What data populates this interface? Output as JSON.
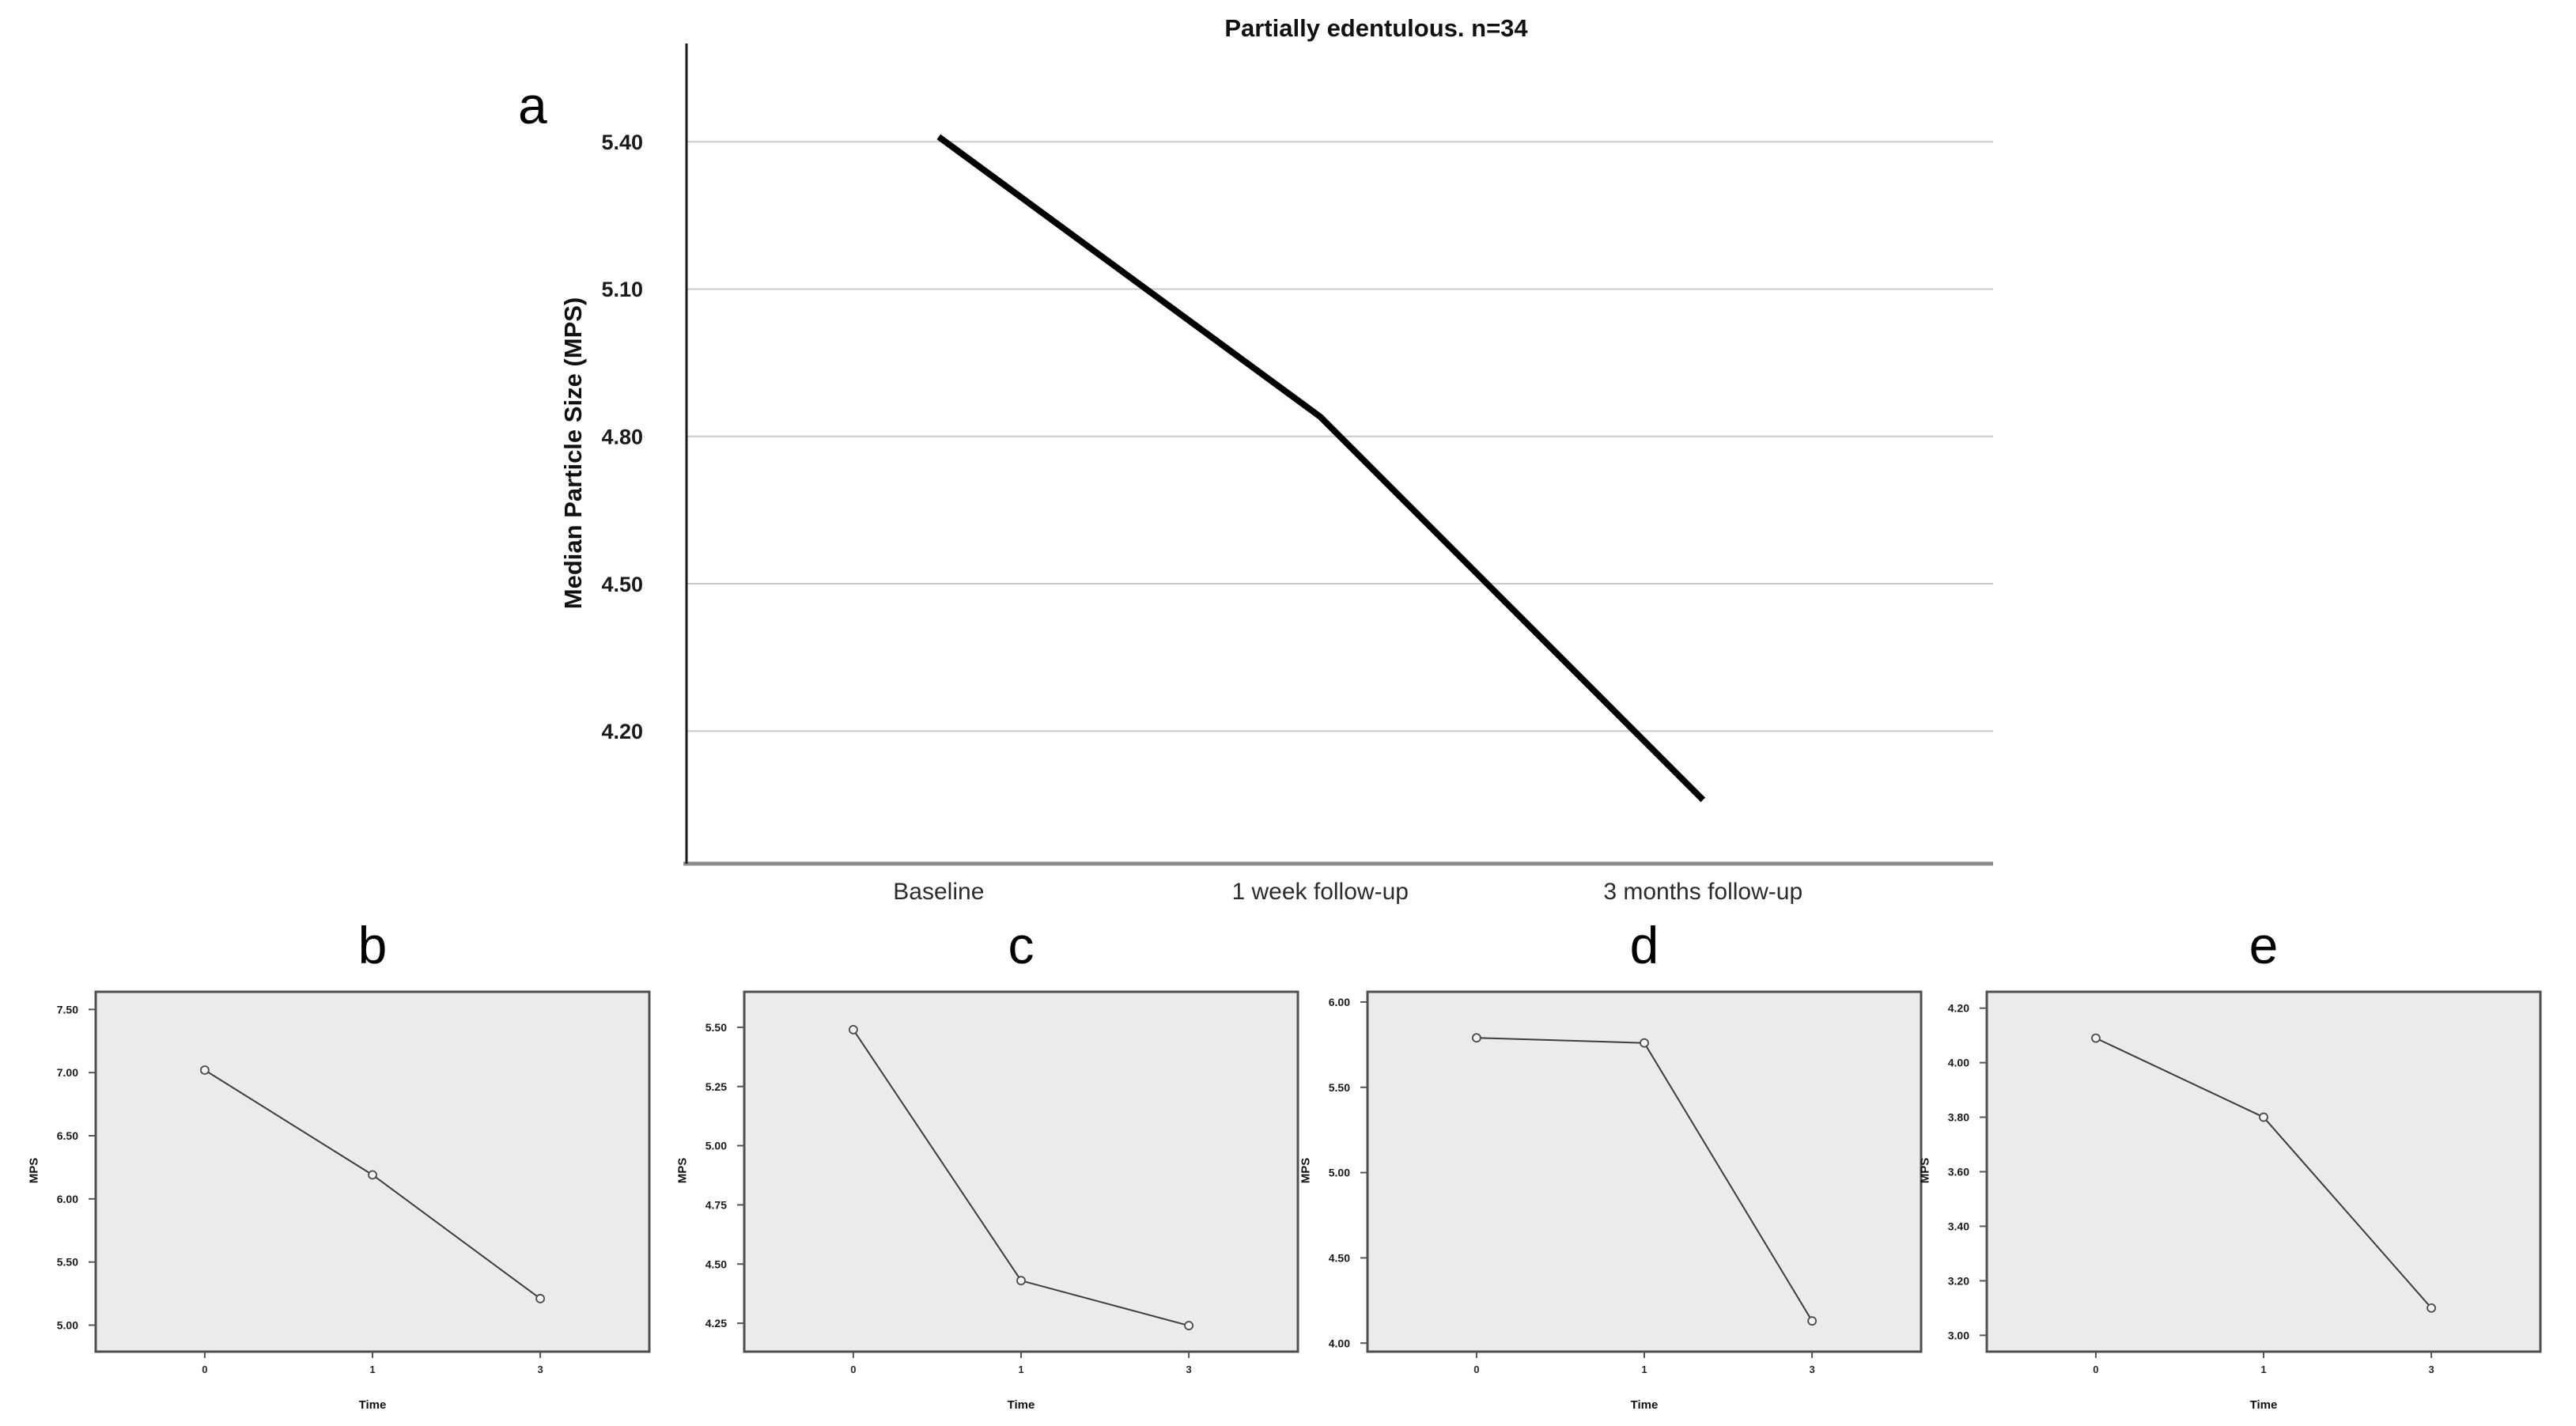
{
  "figure": {
    "background": "#ffffff",
    "panel_letters": [
      "a",
      "b",
      "c",
      "d",
      "e"
    ]
  },
  "chart_data": [
    {
      "panel": "a",
      "type": "line",
      "title": "Partially edentulous. n=34",
      "xlabel": "",
      "ylabel": "Median Particle Size (MPS)",
      "categories": [
        "Baseline",
        "1 week follow-up",
        "3 months follow-up"
      ],
      "values": [
        5.41,
        4.84,
        4.06
      ],
      "yticks": [
        5.4,
        5.1,
        4.8,
        4.5,
        4.2
      ],
      "ytick_labels": [
        "5.40",
        "5.10",
        "4.80",
        "4.50",
        "4.20"
      ],
      "ylim": [
        3.93,
        5.6
      ],
      "grid": true,
      "markers": false,
      "legend": "none",
      "plot_bg": "#ffffff",
      "grid_color": "#c9c9c9",
      "line_color": "#000000",
      "axis_color": "#1a1a1a",
      "baseline_color": "#8c8c8c"
    },
    {
      "panel": "b",
      "type": "line",
      "title": "",
      "xlabel": "Time",
      "ylabel": "MPS",
      "categories": [
        "0",
        "1",
        "3"
      ],
      "values": [
        7.02,
        6.19,
        5.21
      ],
      "yticks": [
        7.5,
        7.0,
        6.5,
        6.0,
        5.5,
        5.0
      ],
      "ytick_labels": [
        "7.50",
        "7.00",
        "6.50",
        "6.00",
        "5.50",
        "5.00"
      ],
      "ylim": [
        4.79,
        7.64
      ],
      "grid": false,
      "markers": true,
      "legend": "none",
      "plot_bg": "#ebebeb",
      "border_color": "#4f4f4f",
      "line_color": "#3d3d3d",
      "marker_fill": "#f4f4f4",
      "marker_stroke": "#4a4a4a"
    },
    {
      "panel": "c",
      "type": "line",
      "title": "",
      "xlabel": "Time",
      "ylabel": "MPS",
      "categories": [
        "0",
        "1",
        "3"
      ],
      "values": [
        5.49,
        4.43,
        4.24
      ],
      "yticks": [
        5.5,
        5.25,
        5.0,
        4.75,
        4.5,
        4.25
      ],
      "ytick_labels": [
        "5.50",
        "5.25",
        "5.00",
        "4.75",
        "4.50",
        "4.25"
      ],
      "ylim": [
        4.13,
        5.65
      ],
      "grid": false,
      "markers": true,
      "legend": "none",
      "plot_bg": "#ebebeb",
      "border_color": "#4f4f4f",
      "line_color": "#3d3d3d",
      "marker_fill": "#f4f4f4",
      "marker_stroke": "#4a4a4a"
    },
    {
      "panel": "d",
      "type": "line",
      "title": "",
      "xlabel": "Time",
      "ylabel": "MPS",
      "categories": [
        "0",
        "1",
        "3"
      ],
      "values": [
        5.79,
        5.76,
        4.13
      ],
      "yticks": [
        6.0,
        5.5,
        5.0,
        4.5,
        4.0
      ],
      "ytick_labels": [
        "6.00",
        "5.50",
        "5.00",
        "4.50",
        "4.00"
      ],
      "ylim": [
        3.95,
        6.06
      ],
      "grid": false,
      "markers": true,
      "legend": "none",
      "plot_bg": "#ebebeb",
      "border_color": "#4f4f4f",
      "line_color": "#3d3d3d",
      "marker_fill": "#f4f4f4",
      "marker_stroke": "#4a4a4a"
    },
    {
      "panel": "e",
      "type": "line",
      "title": "",
      "xlabel": "Time",
      "ylabel": "MPS",
      "categories": [
        "0",
        "1",
        "3"
      ],
      "values": [
        4.09,
        3.8,
        3.1
      ],
      "yticks": [
        4.2,
        4.0,
        3.8,
        3.6,
        3.4,
        3.2,
        3.0
      ],
      "ytick_labels": [
        "4.20",
        "4.00",
        "3.80",
        "3.60",
        "3.40",
        "3.20",
        "3.00"
      ],
      "ylim": [
        2.94,
        4.26
      ],
      "grid": false,
      "markers": true,
      "legend": "none",
      "plot_bg": "#ebebeb",
      "border_color": "#4f4f4f",
      "line_color": "#3d3d3d",
      "marker_fill": "#f4f4f4",
      "marker_stroke": "#4a4a4a"
    }
  ]
}
